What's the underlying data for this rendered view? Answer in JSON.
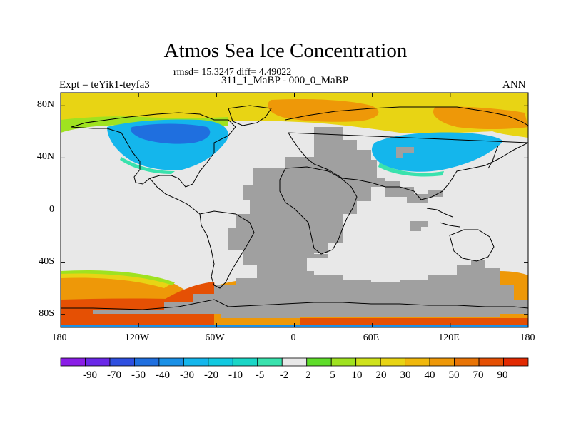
{
  "chart_data": {
    "type": "heatmap",
    "title": "Atmos Sea Ice Concentration",
    "stats_text": "rmsd= 15.3247 diff= 4.49022",
    "periods_text": "311_1_MaBP - 000_0_MaBP",
    "left_label": "Expt = teYik1-teyfa3",
    "right_label": "ANN",
    "x_ticks": [
      {
        "value": -180,
        "label": "180"
      },
      {
        "value": -120,
        "label": "120W"
      },
      {
        "value": -60,
        "label": "60W"
      },
      {
        "value": 0,
        "label": "0"
      },
      {
        "value": 60,
        "label": "60E"
      },
      {
        "value": 120,
        "label": "120E"
      },
      {
        "value": 180,
        "label": "180"
      }
    ],
    "y_ticks": [
      {
        "value": 80,
        "label": "80N"
      },
      {
        "value": 40,
        "label": "40N"
      },
      {
        "value": 0,
        "label": "0"
      },
      {
        "value": -40,
        "label": "40S"
      },
      {
        "value": -80,
        "label": "80S"
      }
    ],
    "xlim": [
      -180,
      180
    ],
    "ylim": [
      -90,
      90
    ],
    "colorbar": {
      "labels": [
        "-90",
        "-70",
        "-50",
        "-40",
        "-30",
        "-20",
        "-10",
        "-5",
        "-2",
        "2",
        "5",
        "10",
        "20",
        "30",
        "40",
        "50",
        "70",
        "90"
      ],
      "colors": [
        "#8a1ee6",
        "#6a28e8",
        "#2e4fe0",
        "#1f6fdf",
        "#1a90e6",
        "#14b6ec",
        "#11c9e0",
        "#1ad6c6",
        "#39e2ad",
        "#e8e8e8",
        "#5fdd2a",
        "#9fe220",
        "#cfe21c",
        "#e8d414",
        "#f0b80c",
        "#ee9808",
        "#e87406",
        "#e55004",
        "#e22a02"
      ]
    },
    "land_color": "#a0a0a0",
    "nodata_color": "#e8e8e8",
    "regions": [
      {
        "name": "north-pacific-ice-loss",
        "value": -35
      },
      {
        "name": "north-atlantic-ice-loss",
        "value": -25
      },
      {
        "name": "arctic-ice-gain",
        "value": 35
      },
      {
        "name": "southern-ocean-ice-gain",
        "value": 50
      },
      {
        "name": "antarctic-coast-ice-gain",
        "value": 70
      }
    ]
  }
}
